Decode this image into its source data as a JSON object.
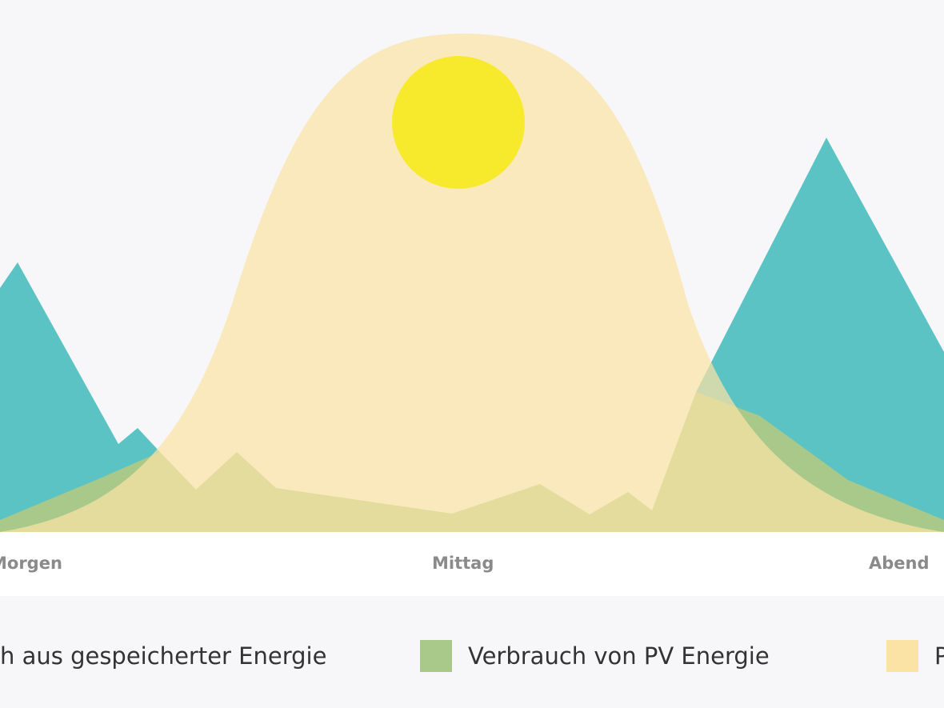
{
  "axis_labels": [
    "Morgen",
    "Mittag",
    "Abend"
  ],
  "legend": [
    {
      "label": "h aus gespeicherter Energie",
      "color": "#5cc3c4"
    },
    {
      "label": "Verbrauch von PV Energie",
      "color": "#a9c98a"
    },
    {
      "label": "P",
      "color": "#fbe3a5"
    }
  ]
}
